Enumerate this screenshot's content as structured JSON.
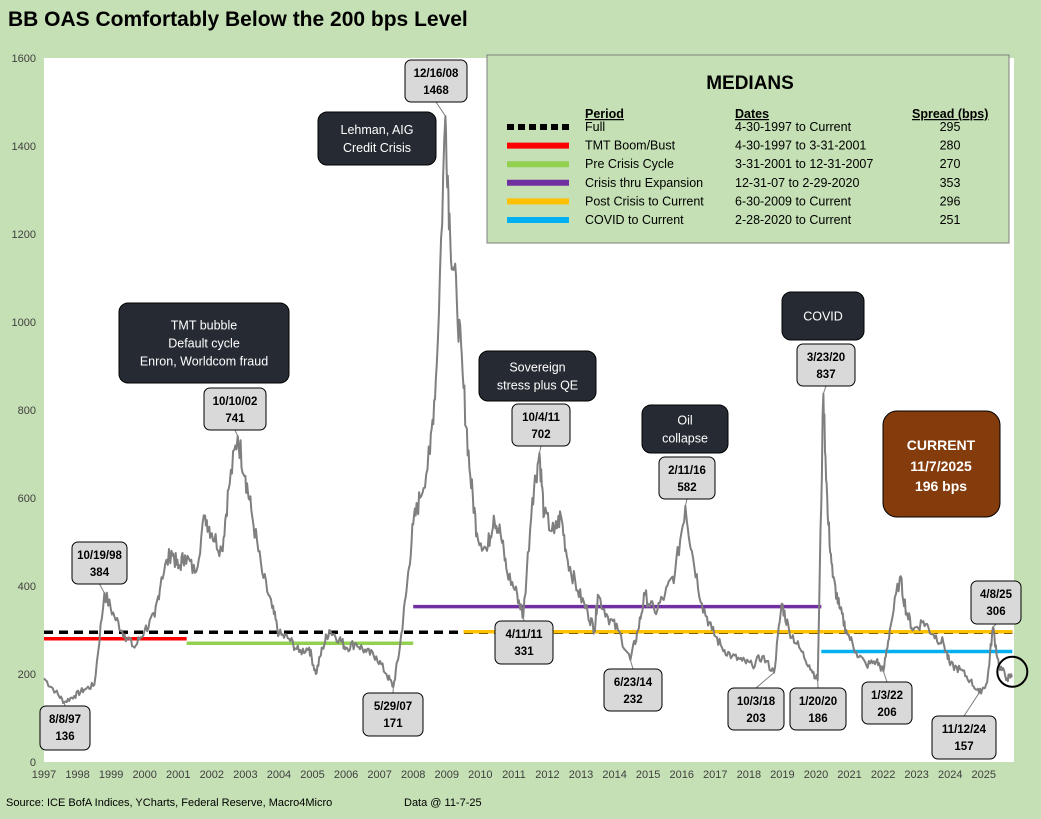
{
  "chart_data": {
    "type": "line",
    "title": "BB OAS Comfortably Below the 200 bps Level",
    "ylim": [
      0,
      1600
    ],
    "yticks": [
      0,
      200,
      400,
      600,
      800,
      1000,
      1200,
      1400,
      1600
    ],
    "xlim": [
      1997,
      2025.9
    ],
    "xticks": [
      "1997",
      "1998",
      "1999",
      "2000",
      "2001",
      "2002",
      "2003",
      "2004",
      "2005",
      "2006",
      "2007",
      "2008",
      "2009",
      "2010",
      "2011",
      "2012",
      "2013",
      "2014",
      "2015",
      "2016",
      "2017",
      "2018",
      "2019",
      "2020",
      "2021",
      "2022",
      "2023",
      "2024",
      "2025"
    ],
    "grid": false,
    "series": [
      {
        "color": "#7f7f7f",
        "points": [
          [
            1997.0,
            190
          ],
          [
            1997.35,
            160
          ],
          [
            1997.6,
            136
          ],
          [
            1997.9,
            150
          ],
          [
            1998.2,
            165
          ],
          [
            1998.5,
            175
          ],
          [
            1998.8,
            384
          ],
          [
            1999.1,
            330
          ],
          [
            1999.4,
            290
          ],
          [
            1999.7,
            260
          ],
          [
            2000.0,
            300
          ],
          [
            2000.3,
            330
          ],
          [
            2000.5,
            420
          ],
          [
            2000.8,
            480
          ],
          [
            2001.0,
            440
          ],
          [
            2001.2,
            470
          ],
          [
            2001.5,
            430
          ],
          [
            2001.8,
            560
          ],
          [
            2002.0,
            520
          ],
          [
            2002.3,
            480
          ],
          [
            2002.5,
            620
          ],
          [
            2002.77,
            741
          ],
          [
            2003.0,
            650
          ],
          [
            2003.2,
            560
          ],
          [
            2003.5,
            430
          ],
          [
            2003.8,
            350
          ],
          [
            2004.0,
            290
          ],
          [
            2004.3,
            280
          ],
          [
            2004.6,
            250
          ],
          [
            2004.9,
            260
          ],
          [
            2005.1,
            200
          ],
          [
            2005.3,
            260
          ],
          [
            2005.5,
            300
          ],
          [
            2005.8,
            280
          ],
          [
            2006.0,
            260
          ],
          [
            2006.3,
            270
          ],
          [
            2006.6,
            250
          ],
          [
            2006.9,
            240
          ],
          [
            2007.2,
            200
          ],
          [
            2007.41,
            171
          ],
          [
            2007.6,
            260
          ],
          [
            2007.8,
            390
          ],
          [
            2008.0,
            540
          ],
          [
            2008.2,
            600
          ],
          [
            2008.5,
            700
          ],
          [
            2008.7,
            900
          ],
          [
            2008.96,
            1468
          ],
          [
            2009.1,
            1200
          ],
          [
            2009.3,
            1050
          ],
          [
            2009.5,
            850
          ],
          [
            2009.7,
            650
          ],
          [
            2009.9,
            520
          ],
          [
            2010.2,
            480
          ],
          [
            2010.4,
            560
          ],
          [
            2010.6,
            520
          ],
          [
            2010.8,
            430
          ],
          [
            2011.1,
            380
          ],
          [
            2011.28,
            331
          ],
          [
            2011.55,
            600
          ],
          [
            2011.76,
            702
          ],
          [
            2011.9,
            560
          ],
          [
            2012.2,
            520
          ],
          [
            2012.4,
            560
          ],
          [
            2012.6,
            460
          ],
          [
            2012.9,
            390
          ],
          [
            2013.2,
            340
          ],
          [
            2013.4,
            300
          ],
          [
            2013.5,
            380
          ],
          [
            2013.8,
            330
          ],
          [
            2014.1,
            300
          ],
          [
            2014.47,
            232
          ],
          [
            2014.7,
            300
          ],
          [
            2014.9,
            380
          ],
          [
            2015.2,
            340
          ],
          [
            2015.5,
            380
          ],
          [
            2015.8,
            430
          ],
          [
            2016.11,
            582
          ],
          [
            2016.3,
            480
          ],
          [
            2016.6,
            360
          ],
          [
            2016.9,
            300
          ],
          [
            2017.2,
            260
          ],
          [
            2017.5,
            240
          ],
          [
            2017.8,
            230
          ],
          [
            2018.1,
            220
          ],
          [
            2018.4,
            240
          ],
          [
            2018.75,
            203
          ],
          [
            2018.98,
            360
          ],
          [
            2019.2,
            300
          ],
          [
            2019.5,
            260
          ],
          [
            2019.8,
            220
          ],
          [
            2020.05,
            186
          ],
          [
            2020.22,
            837
          ],
          [
            2020.35,
            560
          ],
          [
            2020.5,
            420
          ],
          [
            2020.7,
            350
          ],
          [
            2020.9,
            300
          ],
          [
            2021.2,
            250
          ],
          [
            2021.5,
            220
          ],
          [
            2021.8,
            230
          ],
          [
            2022.01,
            206
          ],
          [
            2022.2,
            300
          ],
          [
            2022.5,
            420
          ],
          [
            2022.7,
            340
          ],
          [
            2022.9,
            300
          ],
          [
            2023.2,
            320
          ],
          [
            2023.5,
            290
          ],
          [
            2023.8,
            270
          ],
          [
            2024.0,
            220
          ],
          [
            2024.3,
            210
          ],
          [
            2024.6,
            185
          ],
          [
            2024.86,
            157
          ],
          [
            2025.1,
            180
          ],
          [
            2025.27,
            306
          ],
          [
            2025.45,
            220
          ],
          [
            2025.7,
            190
          ],
          [
            2025.85,
            196
          ]
        ]
      }
    ],
    "medians": [
      {
        "period": "Full",
        "dates": "4-30-1997 to Current",
        "spread": "295",
        "value": 295,
        "x0": 1997.0,
        "x1": 2025.85,
        "color": "#000000",
        "dash": true
      },
      {
        "period": "TMT Boom/Bust",
        "dates": "4-30-1997 to 3-31-2001",
        "spread": "280",
        "value": 280,
        "x0": 1997.0,
        "x1": 2001.25,
        "color": "#ff0000",
        "dash": false
      },
      {
        "period": "Pre Crisis Cycle",
        "dates": "3-31-2001 to 12-31-2007",
        "spread": "270",
        "value": 270,
        "x0": 2001.25,
        "x1": 2008.0,
        "color": "#92d050",
        "dash": false
      },
      {
        "period": "Crisis thru Expansion",
        "dates": "12-31-07 to 2-29-2020",
        "spread": "353",
        "value": 353,
        "x0": 2008.0,
        "x1": 2020.16,
        "color": "#7030a0",
        "dash": false
      },
      {
        "period": "Post Crisis to Current",
        "dates": "6-30-2009 to Current",
        "spread": "296",
        "value": 296,
        "x0": 2009.5,
        "x1": 2025.85,
        "color": "#ffc000",
        "dash": false
      },
      {
        "period": "COVID to Current",
        "dates": "2-28-2020 to Current",
        "spread": "251",
        "value": 251,
        "x0": 2020.16,
        "x1": 2025.85,
        "color": "#00b0f0",
        "dash": false
      }
    ],
    "annotations": [
      {
        "date": "8/8/97",
        "value": "136",
        "x": 1997.6,
        "y": 136
      },
      {
        "date": "10/19/98",
        "value": "384",
        "x": 1998.8,
        "y": 384
      },
      {
        "date": "10/10/02",
        "value": "741",
        "x": 2002.77,
        "y": 741
      },
      {
        "date": "5/29/07",
        "value": "171",
        "x": 2007.41,
        "y": 171
      },
      {
        "date": "12/16/08",
        "value": "1468",
        "x": 2008.96,
        "y": 1468
      },
      {
        "date": "4/11/11",
        "value": "331",
        "x": 2011.28,
        "y": 331
      },
      {
        "date": "10/4/11",
        "value": "702",
        "x": 2011.76,
        "y": 702
      },
      {
        "date": "6/23/14",
        "value": "232",
        "x": 2014.47,
        "y": 232
      },
      {
        "date": "2/11/16",
        "value": "582",
        "x": 2016.11,
        "y": 582
      },
      {
        "date": "10/3/18",
        "value": "203",
        "x": 2018.75,
        "y": 203
      },
      {
        "date": "1/20/20",
        "value": "186",
        "x": 2020.05,
        "y": 186
      },
      {
        "date": "3/23/20",
        "value": "837",
        "x": 2020.22,
        "y": 837
      },
      {
        "date": "1/3/22",
        "value": "206",
        "x": 2022.01,
        "y": 206
      },
      {
        "date": "11/12/24",
        "value": "157",
        "x": 2024.86,
        "y": 157
      },
      {
        "date": "4/8/25",
        "value": "306",
        "x": 2025.27,
        "y": 306
      }
    ],
    "events": [
      {
        "lines": [
          "TMT bubble",
          "Default cycle",
          "Enron, Worldcom fraud"
        ]
      },
      {
        "lines": [
          "Lehman, AIG",
          "Credit Crisis"
        ]
      },
      {
        "lines": [
          "Sovereign",
          "stress plus QE"
        ]
      },
      {
        "lines": [
          "Oil",
          "collapse"
        ]
      },
      {
        "lines": [
          "COVID"
        ]
      }
    ],
    "current": {
      "label": "CURRENT",
      "date": "11/7/2025",
      "value": "196 bps",
      "x": 2025.85,
      "y": 196
    },
    "legend": {
      "title": "MEDIANS",
      "headers": {
        "period": "Period",
        "dates": "Dates",
        "spread": "Spread (bps)"
      }
    }
  },
  "footer": {
    "source": "Source: ICE BofA Indices, YCharts, Federal Reserve, Macro4Micro",
    "data_date": "Data @ 11-7-25"
  },
  "colors": {
    "background": "#c5e0b4",
    "plot": "#ffffff",
    "line": "#7f7f7f",
    "callout_fill": "#d9d9d9",
    "event_fill": "#262b33",
    "current_fill": "#843c0c"
  }
}
